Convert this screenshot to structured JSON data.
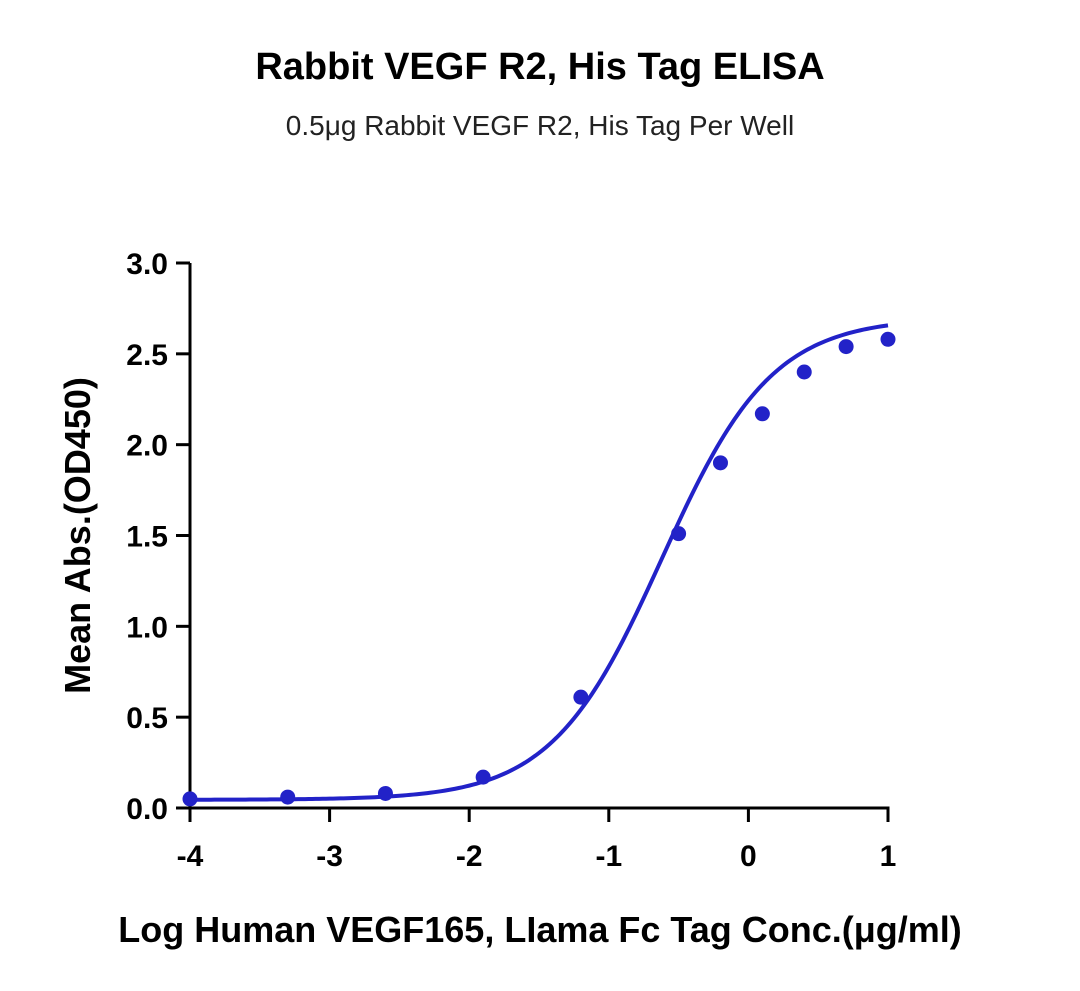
{
  "chart_data": {
    "type": "scatter",
    "title": "Rabbit VEGF R2, His Tag ELISA",
    "subtitle": "0.5μg Rabbit VEGF R2, His Tag Per Well",
    "xlabel": "Log Human VEGF165, LIama Fc Tag Conc.(μg/ml)",
    "ylabel": "Mean Abs.(OD450)",
    "xlim": [
      -4,
      1
    ],
    "ylim": [
      0,
      3.0
    ],
    "x_ticks": [
      -4,
      -3,
      -2,
      -1,
      0,
      1
    ],
    "x_tick_labels": [
      "-4",
      "-3",
      "-2",
      "-1",
      "0",
      "1"
    ],
    "y_ticks": [
      0,
      0.5,
      1.0,
      1.5,
      2.0,
      2.5,
      3.0
    ],
    "y_tick_labels": [
      "0.0",
      "0.5",
      "1.0",
      "1.5",
      "2.0",
      "2.5",
      "3.0"
    ],
    "grid": false,
    "legend": "none",
    "color": "#2222c8",
    "series": [
      {
        "x": [
          -4.0,
          -3.3,
          -2.6,
          -1.9,
          -1.2,
          -0.5,
          -0.2,
          0.1,
          0.4,
          0.7,
          1.0
        ],
        "y": [
          0.05,
          0.06,
          0.08,
          0.17,
          0.61,
          1.51,
          1.9,
          2.17,
          2.4,
          2.54,
          2.58
        ]
      }
    ],
    "fit": {
      "type": "four-parameter-logistic",
      "bottom": 0.045,
      "top": 2.7,
      "logEC50": -0.62,
      "hill": 1.1
    }
  }
}
